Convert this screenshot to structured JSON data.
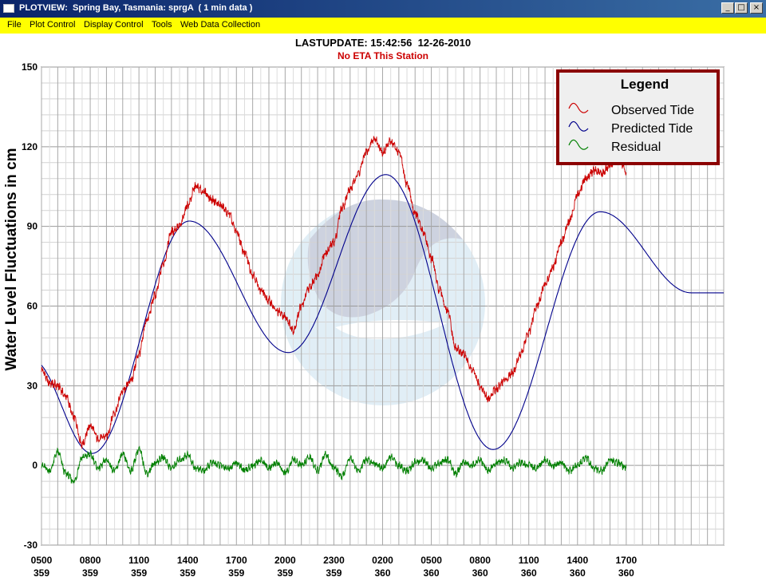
{
  "window": {
    "title": "PLOTVIEW:  Spring Bay, Tasmania: sprgA  ( 1 min data )",
    "buttons": [
      "_",
      "□",
      "×"
    ]
  },
  "menu": {
    "items": [
      "File",
      "Plot Control",
      "Display Control",
      "Tools",
      "Web Data Collection"
    ]
  },
  "header": {
    "last_update": "LASTUPDATE: 15:42:56  12-26-2010",
    "eta": "No ETA This Station"
  },
  "chart_data": {
    "type": "line",
    "ylabel": "Water Level Fluctuations in cm",
    "ylim": [
      -30,
      150
    ],
    "yticks": [
      150,
      120,
      90,
      60,
      30,
      0,
      -30
    ],
    "xlim": [
      0,
      42
    ],
    "x_unit": "hours since 0500 day 359",
    "xticks": [
      {
        "h": 0,
        "time": "0500",
        "day": "359"
      },
      {
        "h": 3,
        "time": "0800",
        "day": "359"
      },
      {
        "h": 6,
        "time": "1100",
        "day": "359"
      },
      {
        "h": 9,
        "time": "1400",
        "day": "359"
      },
      {
        "h": 12,
        "time": "1700",
        "day": "359"
      },
      {
        "h": 15,
        "time": "2000",
        "day": "359"
      },
      {
        "h": 18,
        "time": "2300",
        "day": "359"
      },
      {
        "h": 21,
        "time": "0200",
        "day": "360"
      },
      {
        "h": 24,
        "time": "0500",
        "day": "360"
      },
      {
        "h": 27,
        "time": "0800",
        "day": "360"
      },
      {
        "h": 30,
        "time": "1100",
        "day": "360"
      },
      {
        "h": 33,
        "time": "1400",
        "day": "360"
      },
      {
        "h": 36,
        "time": "1700",
        "day": "360"
      }
    ],
    "grid": true,
    "legend": {
      "title": "Legend",
      "position": "top-right",
      "border_color": "#8b0000"
    },
    "series": [
      {
        "name": "Observed Tide",
        "color": "#cc0000",
        "x": [
          0,
          0.5,
          1,
          1.5,
          2,
          2.5,
          3,
          3.5,
          4,
          4.5,
          5,
          5.5,
          6,
          6.5,
          7,
          7.5,
          8,
          8.5,
          9,
          9.5,
          10,
          10.5,
          11,
          11.5,
          12,
          12.5,
          13,
          13.5,
          14,
          14.5,
          15,
          15.5,
          16,
          16.5,
          17,
          17.5,
          18,
          18.5,
          19,
          19.5,
          20,
          20.5,
          21,
          21.5,
          22,
          22.5,
          23,
          23.5,
          24,
          24.5,
          25,
          25.5,
          26,
          26.5,
          27,
          27.5,
          28,
          28.5,
          29,
          29.5,
          30,
          30.5,
          31,
          31.5,
          32,
          32.5,
          33,
          33.5,
          34,
          34.5,
          35,
          35.5,
          36
        ],
        "y": [
          36,
          31,
          30,
          26,
          18,
          8,
          15,
          10,
          11,
          20,
          28,
          32,
          42,
          55,
          64,
          76,
          88,
          90,
          98,
          105,
          103,
          100,
          98,
          95,
          88,
          80,
          72,
          66,
          62,
          58,
          56,
          51,
          60,
          67,
          72,
          80,
          84,
          97,
          104,
          110,
          118,
          123,
          118,
          122,
          118,
          106,
          95,
          88,
          78,
          66,
          58,
          44,
          42,
          36,
          30,
          25,
          29,
          32,
          35,
          42,
          50,
          60,
          68,
          75,
          84,
          92,
          102,
          108,
          111,
          110,
          113,
          116,
          110
        ]
      },
      {
        "name": "Predicted Tide",
        "color": "#00008b",
        "extrema": [
          [
            -0.6,
            40
          ],
          [
            3.1,
            4.5
          ],
          [
            9.1,
            92
          ],
          [
            15.2,
            42.5
          ],
          [
            21.2,
            109.5
          ],
          [
            27.8,
            6
          ],
          [
            34.4,
            95.5
          ],
          [
            40,
            65
          ]
        ]
      },
      {
        "name": "Residual",
        "color": "#008000",
        "x": [
          0,
          0.5,
          1,
          1.5,
          2,
          2.5,
          3,
          3.5,
          4,
          4.5,
          5,
          5.5,
          6,
          6.5,
          7,
          7.5,
          8,
          8.5,
          9,
          9.5,
          10,
          10.5,
          11,
          11.5,
          12,
          12.5,
          13,
          13.5,
          14,
          14.5,
          15,
          15.5,
          16,
          16.5,
          17,
          17.5,
          18,
          18.5,
          19,
          19.5,
          20,
          20.5,
          21,
          21.5,
          22,
          22.5,
          23,
          23.5,
          24,
          24.5,
          25,
          25.5,
          26,
          26.5,
          27,
          27.5,
          28,
          28.5,
          29,
          29.5,
          30,
          30.5,
          31,
          31.5,
          32,
          32.5,
          33,
          33.5,
          34,
          34.5,
          35,
          35.5,
          36
        ],
        "y": [
          0,
          -2,
          5,
          -3,
          -6,
          3,
          4,
          -1,
          2,
          -2,
          4,
          -2,
          6,
          -3,
          1,
          3,
          -1,
          2,
          4,
          -1,
          -2,
          1,
          0,
          -1,
          1,
          -2,
          0,
          2,
          -1,
          1,
          -3,
          2,
          0,
          3,
          -2,
          4,
          -1,
          -4,
          3,
          -2,
          2,
          1,
          -1,
          3,
          0,
          -2,
          1,
          2,
          -1,
          1,
          2,
          -3,
          1,
          0,
          2,
          -2,
          1,
          2,
          -1,
          1,
          0,
          -1,
          2,
          0,
          1,
          -2,
          0,
          3,
          -1,
          -2,
          2,
          1,
          -1
        ]
      }
    ]
  }
}
